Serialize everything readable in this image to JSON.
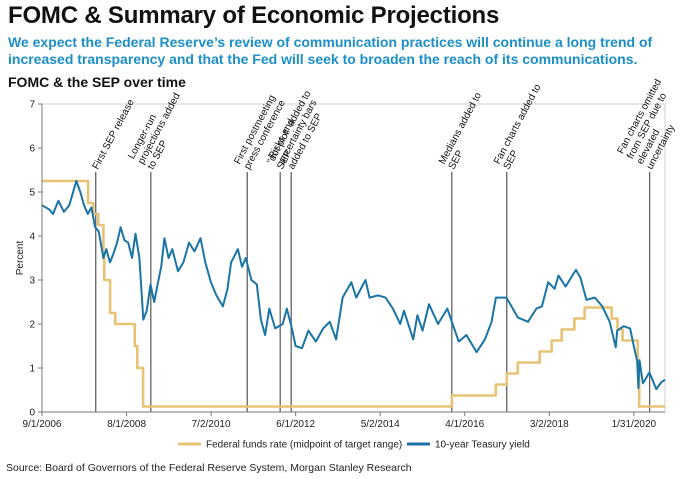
{
  "header": {
    "title": "FOMC & Summary of Economic Projections",
    "subtitle_line1": "We expect the Federal Reserve’s review of communication practices will continue a long trend of",
    "subtitle_line2": "increased transparency and that the Fed will seek to broaden the reach of its communications.",
    "chart_title": "FOMC & the SEP over time"
  },
  "source": "Source: Board of Governors of the Federal Reserve System, Morgan Stanley Research",
  "colors": {
    "fed_funds": "#e8c275",
    "treasury": "#1a75a6",
    "event_line": "#555555"
  },
  "chart_data": {
    "type": "line",
    "xlabel": "",
    "ylabel": "Percent",
    "x_range": [
      "2006-09-01",
      "2020-10-15"
    ],
    "ylim": [
      0,
      7
    ],
    "y_ticks": [
      0,
      1,
      2,
      3,
      4,
      5,
      6,
      7
    ],
    "x_tick_labels": [
      "9/1/2006",
      "8/1/2008",
      "7/2/2010",
      "6/1/2012",
      "5/2/2014",
      "4/1/2016",
      "3/2/2018",
      "1/31/2020"
    ],
    "x_tick_dates": [
      "2006-09-01",
      "2008-08-01",
      "2010-07-02",
      "2012-06-01",
      "2014-05-02",
      "2016-04-01",
      "2018-03-02",
      "2020-01-31"
    ],
    "legend_placement": "bottom",
    "series": [
      {
        "name": "Federal funds rate (midpoint of target range)",
        "color": "#e8c275",
        "step": true,
        "points": [
          [
            "2006-09-01",
            5.25
          ],
          [
            "2007-09-18",
            4.75
          ],
          [
            "2007-10-31",
            4.5
          ],
          [
            "2007-12-11",
            4.25
          ],
          [
            "2008-01-22",
            3.5
          ],
          [
            "2008-01-30",
            3.0
          ],
          [
            "2008-03-18",
            2.25
          ],
          [
            "2008-04-30",
            2.0
          ],
          [
            "2008-10-08",
            1.5
          ],
          [
            "2008-10-29",
            1.0
          ],
          [
            "2008-12-16",
            0.125
          ],
          [
            "2015-12-16",
            0.375
          ],
          [
            "2016-12-14",
            0.625
          ],
          [
            "2017-03-15",
            0.875
          ],
          [
            "2017-06-14",
            1.125
          ],
          [
            "2017-12-13",
            1.375
          ],
          [
            "2018-03-21",
            1.625
          ],
          [
            "2018-06-13",
            1.875
          ],
          [
            "2018-09-26",
            2.125
          ],
          [
            "2018-12-19",
            2.375
          ],
          [
            "2019-07-31",
            2.125
          ],
          [
            "2019-09-18",
            1.875
          ],
          [
            "2019-10-30",
            1.625
          ],
          [
            "2020-03-03",
            1.125
          ],
          [
            "2020-03-15",
            0.125
          ],
          [
            "2020-10-15",
            0.125
          ]
        ]
      },
      {
        "name": "10-year Teasury yield",
        "color": "#1a75a6",
        "points": [
          [
            "2006-09-01",
            4.7
          ],
          [
            "2006-11-01",
            4.6
          ],
          [
            "2006-12-01",
            4.5
          ],
          [
            "2007-01-15",
            4.8
          ],
          [
            "2007-03-01",
            4.55
          ],
          [
            "2007-04-15",
            4.7
          ],
          [
            "2007-06-12",
            5.25
          ],
          [
            "2007-07-15",
            5.0
          ],
          [
            "2007-08-15",
            4.7
          ],
          [
            "2007-09-15",
            4.5
          ],
          [
            "2007-10-15",
            4.65
          ],
          [
            "2007-11-15",
            4.2
          ],
          [
            "2007-12-15",
            4.1
          ],
          [
            "2008-01-22",
            3.5
          ],
          [
            "2008-02-15",
            3.7
          ],
          [
            "2008-03-17",
            3.4
          ],
          [
            "2008-04-15",
            3.6
          ],
          [
            "2008-05-15",
            3.85
          ],
          [
            "2008-06-13",
            4.2
          ],
          [
            "2008-07-15",
            3.9
          ],
          [
            "2008-08-15",
            3.85
          ],
          [
            "2008-09-15",
            3.5
          ],
          [
            "2008-10-14",
            4.05
          ],
          [
            "2008-11-15",
            3.5
          ],
          [
            "2008-12-18",
            2.1
          ],
          [
            "2009-01-15",
            2.3
          ],
          [
            "2009-02-15",
            2.9
          ],
          [
            "2009-03-18",
            2.5
          ],
          [
            "2009-04-15",
            2.9
          ],
          [
            "2009-05-15",
            3.3
          ],
          [
            "2009-06-10",
            3.95
          ],
          [
            "2009-07-15",
            3.5
          ],
          [
            "2009-08-15",
            3.7
          ],
          [
            "2009-10-01",
            3.2
          ],
          [
            "2009-11-15",
            3.4
          ],
          [
            "2009-12-31",
            3.85
          ],
          [
            "2010-02-15",
            3.65
          ],
          [
            "2010-04-05",
            3.95
          ],
          [
            "2010-05-15",
            3.4
          ],
          [
            "2010-06-30",
            2.95
          ],
          [
            "2010-08-15",
            2.65
          ],
          [
            "2010-10-08",
            2.4
          ],
          [
            "2010-11-15",
            2.8
          ],
          [
            "2010-12-15",
            3.4
          ],
          [
            "2011-02-09",
            3.7
          ],
          [
            "2011-03-15",
            3.3
          ],
          [
            "2011-04-15",
            3.5
          ],
          [
            "2011-06-01",
            3.0
          ],
          [
            "2011-07-15",
            2.9
          ],
          [
            "2011-08-18",
            2.1
          ],
          [
            "2011-09-22",
            1.75
          ],
          [
            "2011-10-27",
            2.35
          ],
          [
            "2011-12-15",
            1.9
          ],
          [
            "2012-02-15",
            2.0
          ],
          [
            "2012-03-20",
            2.35
          ],
          [
            "2012-05-01",
            1.9
          ],
          [
            "2012-06-01",
            1.5
          ],
          [
            "2012-07-24",
            1.45
          ],
          [
            "2012-09-15",
            1.85
          ],
          [
            "2012-11-15",
            1.6
          ],
          [
            "2013-01-15",
            1.9
          ],
          [
            "2013-03-11",
            2.05
          ],
          [
            "2013-05-02",
            1.65
          ],
          [
            "2013-06-25",
            2.6
          ],
          [
            "2013-09-05",
            2.95
          ],
          [
            "2013-10-15",
            2.6
          ],
          [
            "2013-12-31",
            3.0
          ],
          [
            "2014-02-03",
            2.6
          ],
          [
            "2014-04-15",
            2.65
          ],
          [
            "2014-06-15",
            2.6
          ],
          [
            "2014-08-15",
            2.35
          ],
          [
            "2014-10-15",
            2.0
          ],
          [
            "2014-11-15",
            2.3
          ],
          [
            "2015-01-30",
            1.65
          ],
          [
            "2015-03-06",
            2.2
          ],
          [
            "2015-04-17",
            1.85
          ],
          [
            "2015-06-10",
            2.45
          ],
          [
            "2015-08-24",
            2.0
          ],
          [
            "2015-11-09",
            2.35
          ],
          [
            "2016-02-11",
            1.6
          ],
          [
            "2016-04-15",
            1.75
          ],
          [
            "2016-07-08",
            1.36
          ],
          [
            "2016-09-15",
            1.65
          ],
          [
            "2016-11-09",
            2.05
          ],
          [
            "2016-12-15",
            2.6
          ],
          [
            "2017-03-13",
            2.6
          ],
          [
            "2017-06-14",
            2.15
          ],
          [
            "2017-09-07",
            2.05
          ],
          [
            "2017-11-15",
            2.35
          ],
          [
            "2017-12-31",
            2.4
          ],
          [
            "2018-02-21",
            2.95
          ],
          [
            "2018-04-15",
            2.8
          ],
          [
            "2018-05-17",
            3.1
          ],
          [
            "2018-07-15",
            2.85
          ],
          [
            "2018-10-08",
            3.23
          ],
          [
            "2018-11-15",
            3.05
          ],
          [
            "2019-01-03",
            2.55
          ],
          [
            "2019-03-15",
            2.6
          ],
          [
            "2019-05-15",
            2.4
          ],
          [
            "2019-07-15",
            2.05
          ],
          [
            "2019-09-03",
            1.47
          ],
          [
            "2019-09-15",
            1.85
          ],
          [
            "2019-11-08",
            1.95
          ],
          [
            "2019-12-31",
            1.9
          ],
          [
            "2020-01-31",
            1.5
          ],
          [
            "2020-02-28",
            1.15
          ],
          [
            "2020-03-09",
            0.54
          ],
          [
            "2020-03-18",
            1.18
          ],
          [
            "2020-04-15",
            0.65
          ],
          [
            "2020-06-08",
            0.9
          ],
          [
            "2020-08-04",
            0.52
          ],
          [
            "2020-09-15",
            0.68
          ],
          [
            "2020-10-15",
            0.73
          ]
        ]
      }
    ],
    "annotations": [
      {
        "date": "2007-11-20",
        "lines": [
          "First SEP release"
        ]
      },
      {
        "date": "2009-02-18",
        "lines": [
          "Longer-run",
          "projections added",
          "to SEP"
        ]
      },
      {
        "date": "2011-04-27",
        "lines": [
          "First postmeeting",
          "press conference"
        ]
      },
      {
        "date": "2012-01-25",
        "lines": [
          "\"dot plot\" added to",
          "SEP"
        ]
      },
      {
        "date": "2012-04-25",
        "lines": [
          "Risks and",
          "uncertainty bars",
          "added to SEP"
        ]
      },
      {
        "date": "2015-12-16",
        "lines": [
          "Medians added to",
          "SEP"
        ]
      },
      {
        "date": "2017-03-15",
        "lines": [
          "Fan charts added to",
          "SEP"
        ]
      },
      {
        "date": "2020-06-10",
        "lines": [
          "Fan charts omitted",
          "from SEP due to",
          "elevated",
          "uncertainty"
        ]
      }
    ]
  }
}
